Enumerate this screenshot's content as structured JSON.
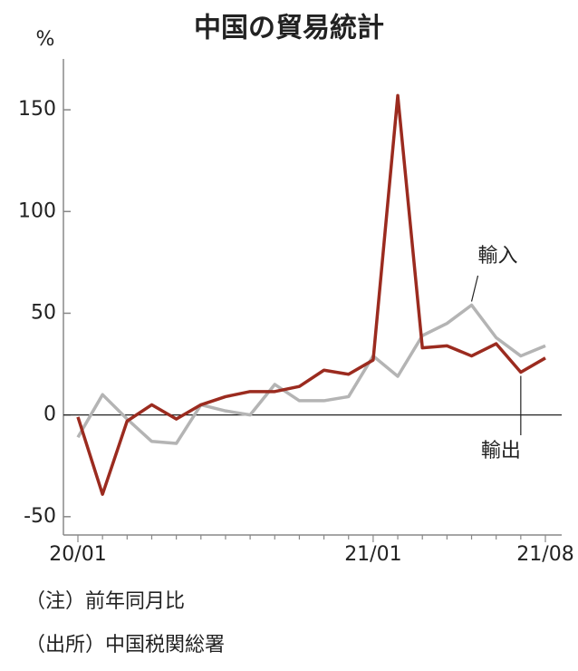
{
  "chart_data": {
    "type": "line",
    "title": "中国の貿易統計",
    "y_unit": "%",
    "categories": [
      "20/01",
      null,
      null,
      null,
      null,
      null,
      null,
      null,
      null,
      null,
      null,
      null,
      "21/01",
      null,
      null,
      null,
      null,
      null,
      null,
      "21/08"
    ],
    "series": [
      {
        "name": "輸出",
        "color": "#9b2b1f",
        "values": [
          -1,
          -39,
          -3,
          5,
          -2,
          5,
          9,
          11.5,
          11.5,
          14,
          22,
          20,
          27,
          157,
          33,
          34,
          29,
          35,
          21,
          28
        ]
      },
      {
        "name": "輸入",
        "color": "#b4b4b4",
        "values": [
          -11,
          10,
          -2,
          -13,
          -14,
          5,
          2,
          0,
          15,
          7,
          7,
          9,
          29,
          19,
          39,
          45,
          54,
          38,
          29,
          34
        ]
      }
    ],
    "ylim": [
      -59,
      175
    ],
    "yticks": [
      -50,
      0,
      50,
      100,
      150
    ],
    "notes": [
      "（注）前年同月比",
      "（出所）中国税関総署"
    ]
  }
}
